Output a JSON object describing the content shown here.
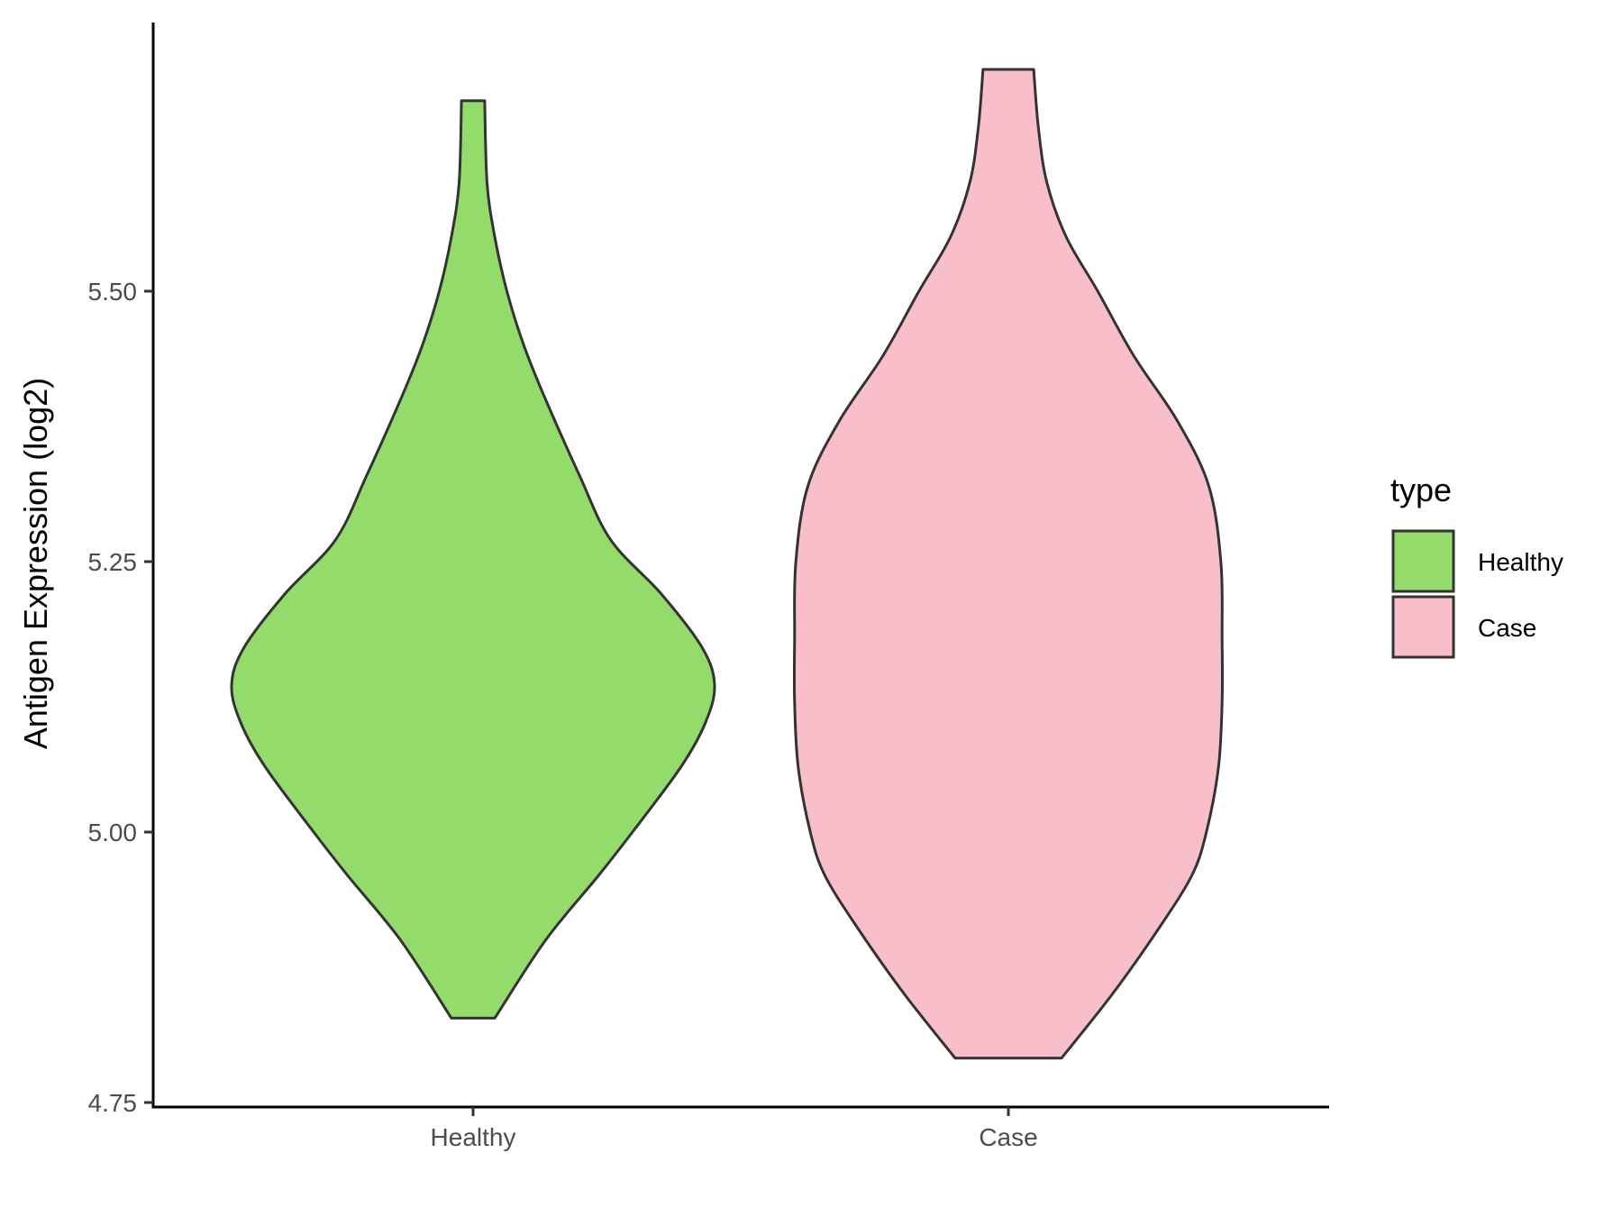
{
  "chart_data": {
    "type": "violin",
    "ylabel": "Antigen Expression (log2)",
    "ylim": [
      4.74,
      5.75
    ],
    "yticks": [
      "4.75",
      "5.00",
      "5.25",
      "5.50"
    ],
    "categories": [
      "Healthy",
      "Case"
    ],
    "legend": {
      "title": "type",
      "position": "right",
      "entries": [
        {
          "label": "Healthy",
          "color": "#93dc6b"
        },
        {
          "label": "Case",
          "color": "#f8bfcb"
        }
      ]
    },
    "grid": false,
    "series": [
      {
        "category": "Healthy",
        "color": "#93dc6b",
        "min": 4.828,
        "max": 5.676,
        "density_max_value": 5.135,
        "profile": [
          [
            4.828,
            0.09
          ],
          [
            4.9,
            0.3
          ],
          [
            4.96,
            0.52
          ],
          [
            5.0,
            0.66
          ],
          [
            5.06,
            0.86
          ],
          [
            5.1,
            0.96
          ],
          [
            5.135,
            1.0
          ],
          [
            5.17,
            0.95
          ],
          [
            5.22,
            0.78
          ],
          [
            5.27,
            0.57
          ],
          [
            5.33,
            0.44
          ],
          [
            5.4,
            0.3
          ],
          [
            5.45,
            0.21
          ],
          [
            5.5,
            0.14
          ],
          [
            5.55,
            0.09
          ],
          [
            5.6,
            0.058
          ],
          [
            5.676,
            0.048
          ]
        ]
      },
      {
        "category": "Case",
        "color": "#f8bfcb",
        "min": 4.791,
        "max": 5.705,
        "density_max_value": 5.16,
        "profile": [
          [
            4.791,
            0.22
          ],
          [
            4.85,
            0.43
          ],
          [
            4.91,
            0.62
          ],
          [
            4.96,
            0.76
          ],
          [
            5.0,
            0.82
          ],
          [
            5.06,
            0.87
          ],
          [
            5.12,
            0.885
          ],
          [
            5.18,
            0.885
          ],
          [
            5.25,
            0.88
          ],
          [
            5.32,
            0.83
          ],
          [
            5.38,
            0.7
          ],
          [
            5.44,
            0.52
          ],
          [
            5.5,
            0.37
          ],
          [
            5.55,
            0.24
          ],
          [
            5.6,
            0.16
          ],
          [
            5.65,
            0.125
          ],
          [
            5.705,
            0.105
          ]
        ]
      }
    ]
  }
}
